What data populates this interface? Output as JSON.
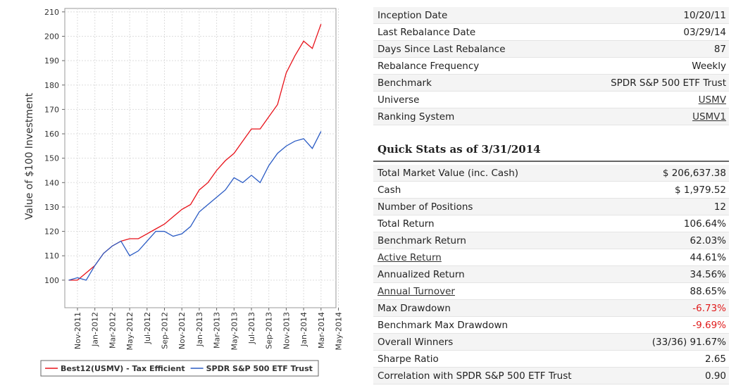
{
  "chart_data": {
    "type": "line",
    "y_label": "Value of $100 Investment",
    "x": [
      "Oct-2011",
      "Nov-2011",
      "Dec-2011",
      "Jan-2012",
      "Feb-2012",
      "Mar-2012",
      "Apr-2012",
      "May-2012",
      "Jun-2012",
      "Jul-2012",
      "Aug-2012",
      "Sep-2012",
      "Oct-2012",
      "Nov-2012",
      "Dec-2012",
      "Jan-2013",
      "Feb-2013",
      "Mar-2013",
      "Apr-2013",
      "May-2013",
      "Jun-2013",
      "Jul-2013",
      "Aug-2013",
      "Sep-2013",
      "Oct-2013",
      "Nov-2013",
      "Dec-2013",
      "Jan-2014",
      "Feb-2014",
      "Mar-2014"
    ],
    "series": [
      {
        "name": "Best12(USMV) - Tax Efficient",
        "color": "#e8121a",
        "values": [
          100,
          100,
          103,
          106,
          111,
          114,
          116,
          117,
          117,
          119,
          121,
          123,
          126,
          129,
          131,
          137,
          140,
          145,
          149,
          152,
          157,
          162,
          162,
          167,
          172,
          185,
          192,
          198,
          195,
          205
        ]
      },
      {
        "name": "SPDR S&P 500 ETF Trust",
        "color": "#2a5bc4",
        "values": [
          100,
          101,
          100,
          106,
          111,
          114,
          116,
          110,
          112,
          116,
          120,
          120,
          118,
          119,
          122,
          128,
          131,
          134,
          137,
          142,
          140,
          143,
          140,
          147,
          152,
          155,
          157,
          158,
          154,
          161
        ]
      }
    ],
    "ylim": [
      88.7,
      211.4
    ],
    "yticks": [
      100,
      110,
      120,
      130,
      140,
      150,
      160,
      170,
      180,
      190,
      200,
      210
    ],
    "xticks": [
      "Nov-2011",
      "Jan-2012",
      "Mar-2012",
      "May-2012",
      "Jul-2012",
      "Sep-2012",
      "Nov-2012",
      "Jan-2013",
      "Mar-2013",
      "May-2013",
      "Jul-2013",
      "Sep-2013",
      "Nov-2013",
      "Jan-2014",
      "Mar-2014",
      "May-2014"
    ],
    "grid": true
  },
  "info_table": {
    "rows": [
      [
        "Inception Date",
        "10/20/11"
      ],
      [
        "Last Rebalance Date",
        "03/29/14"
      ],
      [
        "Days Since Last Rebalance",
        "87"
      ],
      [
        "Rebalance Frequency",
        "Weekly"
      ],
      [
        "Benchmark",
        "SPDR S&P 500 ETF Trust"
      ],
      [
        "Universe",
        "USMV"
      ],
      [
        "Ranking System",
        "USMV1"
      ]
    ]
  },
  "quick_stats": {
    "title": "Quick Stats as of 3/31/2014",
    "rows": [
      [
        "Total Market Value (inc. Cash)",
        "$ 206,637.38"
      ],
      [
        "Cash",
        "$ 1,979.52"
      ],
      [
        "Number of Positions",
        "12"
      ],
      [
        "Total Return",
        "106.64%"
      ],
      [
        "Benchmark Return",
        "62.03%"
      ],
      [
        "Active Return",
        "44.61%"
      ],
      [
        "Annualized Return",
        "34.56%"
      ],
      [
        "Annual Turnover",
        "88.65%"
      ],
      [
        "Max Drawdown",
        "-6.73%"
      ],
      [
        "Benchmark Max Drawdown",
        "-9.69%"
      ],
      [
        "Overall Winners",
        "(33/36) 91.67%"
      ],
      [
        "Sharpe Ratio",
        "2.65"
      ],
      [
        "Correlation with SPDR S&P 500 ETF Trust",
        "0.90"
      ]
    ]
  }
}
